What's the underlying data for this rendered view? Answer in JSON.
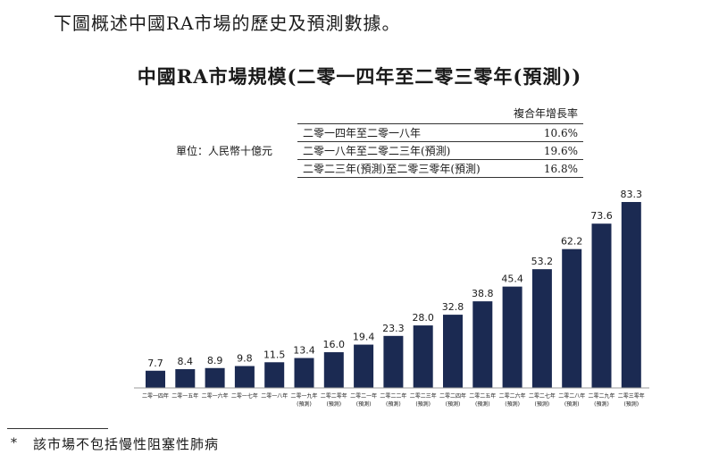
{
  "intro": "下圖概述中國RA市場的歷史及預測數據。",
  "chart_data": {
    "type": "bar",
    "title": "中國RA市場規模(二零一四年至二零三零年(預測))",
    "unit_label": "單位：人民幣十億元",
    "categories": [
      [
        "二零一四年"
      ],
      [
        "二零一五年"
      ],
      [
        "二零一六年"
      ],
      [
        "二零一七年"
      ],
      [
        "二零一八年"
      ],
      [
        "二零一九年",
        "(預測)"
      ],
      [
        "二零二零年",
        "(預測)"
      ],
      [
        "二零二一年",
        "(預測)"
      ],
      [
        "二零二二年",
        "(預測)"
      ],
      [
        "二零二三年",
        "(預測)"
      ],
      [
        "二零二四年",
        "(預測)"
      ],
      [
        "二零二五年",
        "(預測)"
      ],
      [
        "二零二六年",
        "(預測)"
      ],
      [
        "二零二七年",
        "(預測)"
      ],
      [
        "二零二八年",
        "(預測)"
      ],
      [
        "二零二九年",
        "(預測)"
      ],
      [
        "二零三零年",
        "(預測)"
      ]
    ],
    "values": [
      7.7,
      8.4,
      8.9,
      9.8,
      11.5,
      13.4,
      16.0,
      19.4,
      23.3,
      28.0,
      32.8,
      38.8,
      45.4,
      53.2,
      62.2,
      73.6,
      83.3
    ],
    "value_labels": [
      "7.7",
      "8.4",
      "8.9",
      "9.8",
      "11.5",
      "13.4",
      "16.0",
      "19.4",
      "23.3",
      "28.0",
      "32.8",
      "38.8",
      "45.4",
      "53.2",
      "62.2",
      "73.6",
      "83.3"
    ],
    "ylim": [
      0,
      83.3
    ],
    "bar_color": "#1b2a52",
    "grid": false,
    "cagr_table": {
      "header": "複合年增長率",
      "rows": [
        {
          "period": "二零一四年至二零一八年",
          "value": "10.6%"
        },
        {
          "period": "二零一八年至二零二三年(預測)",
          "value": "19.6%"
        },
        {
          "period": "二零二三年(預測)至二零三零年(預測)",
          "value": "16.8%"
        }
      ]
    }
  },
  "footnote": {
    "mark": "*",
    "text": "該市場不包括慢性阻塞性肺病"
  }
}
